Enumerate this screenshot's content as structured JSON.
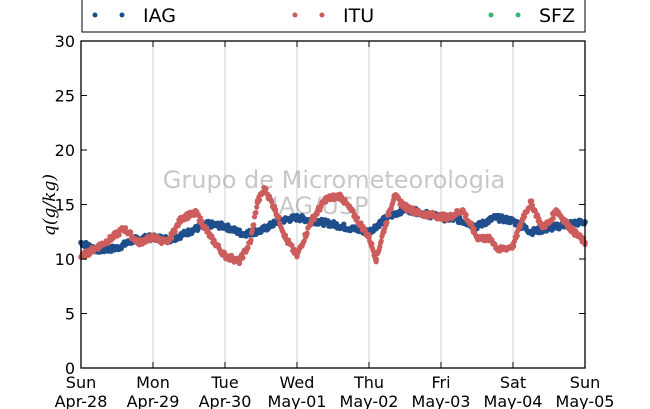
{
  "chart_data": {
    "type": "scatter",
    "ylabel": "q(g/kg)",
    "ylim": [
      0,
      30
    ],
    "yticks": [
      "0",
      "5",
      "10",
      "15",
      "20",
      "25",
      "30"
    ],
    "xticks": [
      {
        "day": "Sun",
        "date": "Apr-28"
      },
      {
        "day": "Mon",
        "date": "Apr-29"
      },
      {
        "day": "Tue",
        "date": "Apr-30"
      },
      {
        "day": "Wed",
        "date": "May-01"
      },
      {
        "day": "Thu",
        "date": "May-02"
      },
      {
        "day": "Fri",
        "date": "May-03"
      },
      {
        "day": "Sat",
        "date": "May-04"
      },
      {
        "day": "Sun",
        "date": "May-05"
      }
    ],
    "watermark": [
      "Grupo de Micrometeorologia",
      "IAG/USP"
    ],
    "series": [
      {
        "name": "IAG",
        "color": "#1f4e8c",
        "x": [
          0.0,
          0.25,
          0.5,
          0.75,
          1.0,
          1.25,
          1.5,
          1.75,
          2.0,
          2.25,
          2.5,
          2.75,
          3.0,
          3.25,
          3.5,
          3.75,
          4.0,
          4.25,
          4.5,
          4.75,
          5.0,
          5.25,
          5.5,
          5.75,
          6.0,
          6.25,
          6.5,
          6.75,
          7.0
        ],
        "y": [
          11.5,
          10.8,
          11.0,
          11.8,
          12.0,
          11.8,
          12.5,
          13.2,
          13.0,
          12.3,
          12.6,
          13.5,
          13.8,
          13.5,
          13.2,
          12.8,
          12.5,
          13.8,
          14.6,
          14.2,
          13.8,
          13.6,
          13.0,
          13.8,
          13.5,
          12.5,
          12.8,
          13.2,
          13.4
        ]
      },
      {
        "name": "ITU",
        "color": "#cd5c5c",
        "x": [
          0.0,
          0.2,
          0.4,
          0.6,
          0.8,
          1.0,
          1.2,
          1.4,
          1.6,
          1.8,
          2.0,
          2.2,
          2.35,
          2.45,
          2.55,
          2.7,
          2.85,
          3.0,
          3.2,
          3.4,
          3.6,
          3.8,
          4.0,
          4.1,
          4.2,
          4.35,
          4.5,
          4.7,
          4.9,
          5.1,
          5.3,
          5.5,
          5.7,
          5.8,
          6.0,
          6.15,
          6.25,
          6.4,
          6.5,
          6.6,
          6.8,
          7.0
        ],
        "y": [
          10.2,
          11.0,
          11.8,
          12.8,
          11.5,
          12.0,
          11.5,
          13.8,
          14.2,
          12.0,
          10.3,
          9.8,
          11.5,
          15.2,
          16.5,
          14.5,
          11.8,
          10.3,
          13.5,
          15.5,
          15.8,
          14.0,
          12.0,
          10.0,
          12.5,
          15.8,
          14.8,
          14.2,
          14.0,
          13.8,
          14.5,
          12.0,
          11.8,
          10.8,
          11.2,
          14.0,
          15.2,
          13.0,
          13.3,
          14.5,
          12.8,
          11.5
        ]
      },
      {
        "name": "SFZ",
        "color": "#3cb371",
        "x": [],
        "y": []
      }
    ]
  }
}
